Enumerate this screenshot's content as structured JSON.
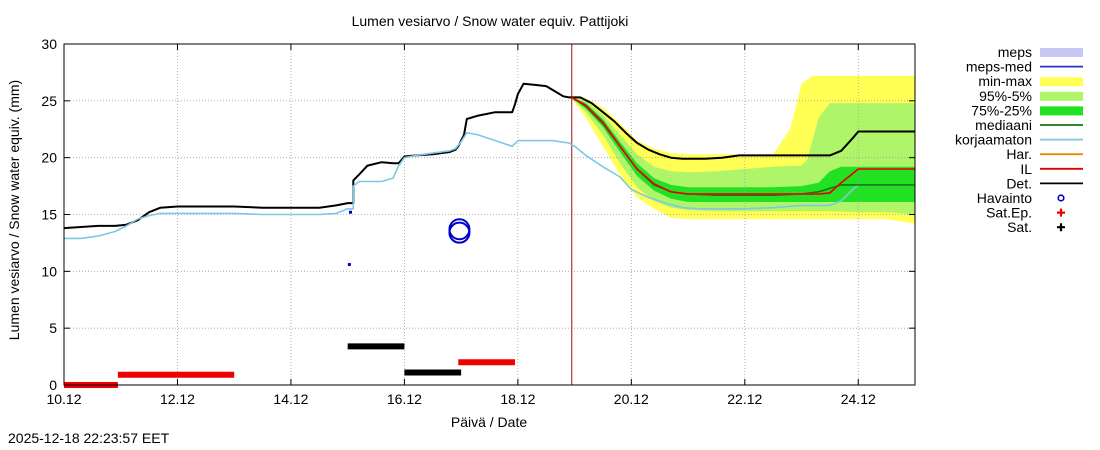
{
  "chart_data": {
    "type": "line",
    "title": "Lumen vesiarvo / Snow water equiv.  Pattijoki",
    "xlabel": "Päivä / Date",
    "ylabel": "Lumen vesiarvo / Snow water equiv. (mm)",
    "xlim": [
      10.0,
      25.0
    ],
    "ylim": [
      0,
      30
    ],
    "x_unit": "day of December",
    "xticks": [
      {
        "x": 10,
        "label": "10.12"
      },
      {
        "x": 12,
        "label": "12.12"
      },
      {
        "x": 14,
        "label": "14.12"
      },
      {
        "x": 16,
        "label": "16.12"
      },
      {
        "x": 18,
        "label": "18.12"
      },
      {
        "x": 20,
        "label": "20.12"
      },
      {
        "x": 22,
        "label": "22.12"
      },
      {
        "x": 24,
        "label": "24.12"
      }
    ],
    "yticks": [
      0,
      5,
      10,
      15,
      20,
      25,
      30
    ],
    "grid": true,
    "forecast_start_x": 18.95,
    "legend": [
      {
        "label": "meps",
        "kind": "band",
        "color": "#c8c8f5"
      },
      {
        "label": "meps-med",
        "kind": "line",
        "color": "#3030c0"
      },
      {
        "label": "min-max",
        "kind": "band",
        "color": "#ffff55"
      },
      {
        "label": "95%-5%",
        "kind": "band",
        "color": "#aef56a"
      },
      {
        "label": "75%-25%",
        "kind": "band",
        "color": "#22e022"
      },
      {
        "label": "mediaani",
        "kind": "line",
        "color": "#117711"
      },
      {
        "label": "korjaamaton",
        "kind": "line",
        "color": "#7ec8e3"
      },
      {
        "label": "Har.",
        "kind": "line",
        "color": "#ee8800"
      },
      {
        "label": "IL",
        "kind": "line",
        "color": "#dd0000"
      },
      {
        "label": "Det.",
        "kind": "line",
        "color": "#000000"
      },
      {
        "label": "Havainto",
        "kind": "circle",
        "color": "#0000cc"
      },
      {
        "label": "Sat.Ep.",
        "kind": "plus",
        "color": "#ee0000"
      },
      {
        "label": "Sat.",
        "kind": "plus",
        "color": "#000000"
      }
    ],
    "series": [
      {
        "name": "Det.",
        "color": "#000000",
        "x": [
          10.0,
          10.3,
          10.6,
          10.9,
          11.1,
          11.3,
          11.5,
          11.7,
          12.0,
          12.5,
          13.0,
          13.5,
          14.0,
          14.5,
          14.8,
          15.0,
          15.1,
          15.1,
          15.2,
          15.35,
          15.6,
          15.8,
          15.9,
          16.0,
          16.2,
          16.5,
          16.8,
          16.9,
          16.95,
          17.0,
          17.05,
          17.1,
          17.3,
          17.6,
          17.9,
          17.95,
          18.0,
          18.1,
          18.3,
          18.5,
          18.6,
          18.7,
          18.8,
          18.9,
          19.0,
          19.1,
          19.3,
          19.5,
          19.7,
          19.9,
          20.1,
          20.3,
          20.5,
          20.7,
          20.9,
          21.1,
          21.3,
          21.6,
          21.9,
          22.0,
          22.5,
          23.0,
          23.5,
          23.7,
          23.9,
          24.0,
          24.3,
          24.6,
          25.0
        ],
        "y": [
          13.8,
          13.9,
          14.0,
          14.0,
          14.1,
          14.5,
          15.2,
          15.6,
          15.7,
          15.7,
          15.7,
          15.6,
          15.6,
          15.6,
          15.8,
          16.0,
          16.0,
          18.0,
          18.5,
          19.3,
          19.6,
          19.5,
          19.5,
          20.1,
          20.2,
          20.3,
          20.5,
          20.7,
          21.0,
          21.5,
          22.0,
          23.4,
          23.7,
          24.0,
          24.0,
          24.7,
          25.6,
          26.5,
          26.4,
          26.3,
          26.0,
          25.7,
          25.4,
          25.3,
          25.3,
          25.3,
          24.8,
          24.0,
          23.2,
          22.2,
          21.3,
          20.7,
          20.3,
          20.0,
          19.9,
          19.9,
          19.9,
          20.0,
          20.2,
          20.2,
          20.2,
          20.2,
          20.2,
          20.6,
          21.7,
          22.3,
          22.3,
          22.3,
          22.3
        ]
      },
      {
        "name": "korjaamaton",
        "color": "#7ec8e3",
        "x": [
          10.0,
          10.3,
          10.6,
          10.9,
          11.1,
          11.3,
          11.5,
          11.7,
          12.0,
          12.5,
          13.0,
          13.5,
          14.0,
          14.5,
          14.8,
          15.0,
          15.1,
          15.1,
          15.2,
          15.35,
          15.6,
          15.8,
          15.9,
          16.0,
          16.2,
          16.5,
          16.8,
          16.9,
          17.0,
          17.05,
          17.1,
          17.3,
          17.6,
          17.9,
          18.0,
          18.3,
          18.6,
          18.9,
          19.0,
          19.2,
          19.5,
          19.8,
          20.0,
          20.3,
          20.6,
          20.9,
          21.2,
          21.6,
          22.0,
          22.5,
          23.0,
          23.5,
          23.7,
          23.9,
          24.0,
          24.3,
          24.6,
          25.0
        ],
        "y": [
          12.9,
          12.9,
          13.1,
          13.5,
          14.0,
          14.6,
          14.9,
          15.1,
          15.1,
          15.1,
          15.1,
          15.0,
          15.0,
          15.0,
          15.1,
          15.5,
          15.5,
          17.5,
          17.9,
          17.9,
          17.9,
          18.2,
          19.3,
          20.0,
          20.2,
          20.4,
          20.6,
          20.8,
          21.4,
          21.8,
          22.2,
          22.0,
          21.5,
          21.0,
          21.5,
          21.5,
          21.5,
          21.3,
          21.0,
          20.2,
          19.2,
          18.3,
          17.2,
          16.5,
          16.0,
          15.6,
          15.5,
          15.5,
          15.5,
          15.6,
          15.8,
          15.8,
          16.2,
          17.2,
          17.6,
          17.6,
          17.6,
          17.6
        ]
      },
      {
        "name": "mediaani",
        "color": "#117711",
        "x": [
          18.95,
          19.2,
          19.5,
          19.8,
          20.1,
          20.4,
          20.7,
          21.0,
          21.5,
          22.0,
          22.5,
          23.0,
          23.3,
          23.5,
          23.7,
          23.9,
          24.0,
          24.3,
          24.6,
          25.0
        ],
        "y": [
          25.3,
          24.5,
          23.0,
          21.0,
          19.0,
          17.6,
          17.0,
          16.8,
          16.7,
          16.7,
          16.7,
          16.8,
          17.0,
          17.3,
          17.6,
          17.6,
          17.6,
          17.6,
          17.6,
          17.6
        ]
      },
      {
        "name": "Har.",
        "color": "#ee8800",
        "x": [
          18.95,
          19.2,
          19.5,
          19.8,
          20.1,
          20.4,
          20.7,
          21.0,
          21.5,
          22.0,
          22.5,
          23.0,
          23.3,
          23.5,
          23.7,
          23.9,
          24.0,
          24.3,
          24.6,
          25.0
        ],
        "y": [
          25.3,
          24.6,
          23.1,
          21.0,
          19.0,
          17.7,
          17.0,
          16.8,
          16.8,
          16.8,
          16.8,
          16.8,
          16.8,
          16.9,
          17.8,
          18.6,
          19.0,
          19.0,
          19.0,
          19.0
        ]
      },
      {
        "name": "IL",
        "color": "#dd0000",
        "x": [
          18.95,
          19.2,
          19.5,
          19.8,
          20.1,
          20.4,
          20.7,
          21.0,
          21.5,
          22.0,
          22.5,
          23.0,
          23.3,
          23.5,
          23.7,
          23.9,
          24.0,
          24.3,
          24.6,
          25.0
        ],
        "y": [
          25.3,
          24.6,
          23.1,
          21.0,
          19.0,
          17.7,
          17.0,
          16.8,
          16.8,
          16.8,
          16.8,
          16.8,
          16.8,
          16.9,
          17.8,
          18.6,
          19.0,
          19.0,
          19.0,
          19.0
        ]
      }
    ],
    "bands": [
      {
        "name": "min-max",
        "color": "#ffff55",
        "x": [
          18.95,
          19.2,
          19.5,
          19.8,
          20.1,
          20.4,
          20.7,
          21.0,
          21.5,
          22.0,
          22.5,
          22.8,
          23.0,
          23.2,
          23.5,
          24.0,
          24.5,
          25.0
        ],
        "upper": [
          25.5,
          25.2,
          24.4,
          23.0,
          21.5,
          20.8,
          20.4,
          20.3,
          20.3,
          20.3,
          20.3,
          22.5,
          26.5,
          27.2,
          27.2,
          27.2,
          27.2,
          27.2
        ],
        "lower": [
          25.2,
          23.5,
          21.0,
          18.5,
          16.5,
          15.5,
          14.7,
          14.6,
          14.6,
          14.6,
          14.6,
          14.6,
          14.6,
          14.6,
          14.6,
          14.6,
          14.6,
          14.2
        ]
      },
      {
        "name": "95%-5%",
        "color": "#aef56a",
        "x": [
          18.95,
          19.2,
          19.5,
          19.8,
          20.1,
          20.4,
          20.7,
          21.0,
          21.5,
          22.0,
          22.5,
          23.0,
          23.1,
          23.3,
          23.5,
          24.0,
          24.5,
          25.0
        ],
        "upper": [
          25.4,
          25.0,
          23.8,
          22.0,
          20.3,
          19.2,
          18.8,
          18.7,
          18.8,
          19.0,
          19.2,
          19.3,
          19.8,
          23.5,
          24.8,
          24.8,
          24.8,
          24.8
        ],
        "lower": [
          25.2,
          24.0,
          22.0,
          19.5,
          17.4,
          16.2,
          15.6,
          15.4,
          15.3,
          15.3,
          15.3,
          15.3,
          15.3,
          15.3,
          15.3,
          15.2,
          15.2,
          15.0
        ]
      },
      {
        "name": "75%-25%",
        "color": "#22e022",
        "x": [
          18.95,
          19.2,
          19.5,
          19.8,
          20.1,
          20.4,
          20.7,
          21.0,
          21.5,
          22.0,
          22.5,
          23.0,
          23.3,
          23.5,
          23.7,
          24.0,
          24.5,
          25.0
        ],
        "upper": [
          25.3,
          24.8,
          23.4,
          21.4,
          19.5,
          18.2,
          17.6,
          17.4,
          17.4,
          17.4,
          17.4,
          17.5,
          17.8,
          18.8,
          19.2,
          19.2,
          19.2,
          19.2
        ],
        "lower": [
          25.3,
          24.3,
          22.7,
          20.5,
          18.4,
          17.1,
          16.4,
          16.1,
          16.1,
          16.1,
          16.1,
          16.1,
          16.1,
          16.1,
          16.1,
          16.1,
          16.1,
          16.1
        ]
      }
    ],
    "havainto": [
      {
        "x": 16.97,
        "y": 13.7
      },
      {
        "x": 16.97,
        "y": 13.4
      }
    ],
    "sat_points": [
      {
        "x": 15.05,
        "y": 15.2
      },
      {
        "x": 15.03,
        "y": 10.6
      }
    ],
    "sat_ep_segments": [
      {
        "x0": 10.0,
        "x1": 10.95,
        "y": 0.0
      },
      {
        "x0": 10.95,
        "x1": 13.0,
        "y": 0.9
      },
      {
        "x0": 16.95,
        "x1": 17.95,
        "y": 2.0
      }
    ],
    "sat_segments": [
      {
        "x0": 15.0,
        "x1": 16.0,
        "y": 3.4
      },
      {
        "x0": 16.0,
        "x1": 17.0,
        "y": 1.1
      }
    ]
  },
  "footer": {
    "timestamp": "2025-12-18 22:23:57 EET"
  }
}
